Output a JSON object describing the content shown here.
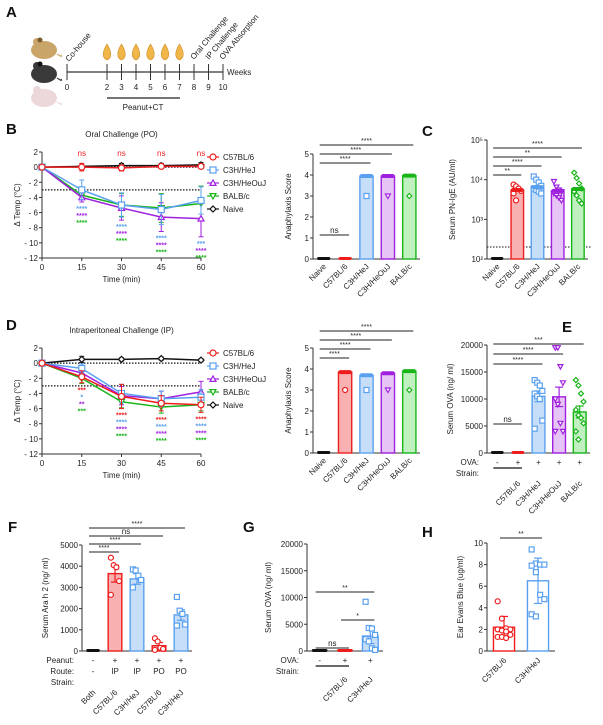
{
  "colors": {
    "C57BL/6": "#ee1c1c",
    "C3H/HeJ": "#5aa0f0",
    "C3H/HeOuJ": "#a020e0",
    "BALB/c": "#18b418",
    "Naive": "#111111"
  },
  "fills": {
    "C57BL/6": "#f8b0b0",
    "C3H/HeJ": "#c6def8",
    "C3H/HeOuJ": "#e6c4f6",
    "BALB/c": "#c0f0c0",
    "Naive": "#111111"
  },
  "panelA": {
    "letter": "A",
    "event_labels": [
      "Co-house",
      "Oral Challenge",
      "IP Challenge",
      "OVA Absorption"
    ],
    "week_ticks": [
      "0",
      "2",
      "3",
      "4",
      "5",
      "6",
      "7",
      "8",
      "9",
      "10"
    ],
    "axis_label": "Weeks",
    "bracket_label": "Peanut+CT"
  },
  "chart_data": [
    {
      "id": "B",
      "letter": "B",
      "type": "line",
      "title": "Oral Challenge (PO)",
      "xlabel": "Time  (min)",
      "ylabel": "Δ Temp (°C)",
      "x": [
        0,
        15,
        30,
        45,
        60
      ],
      "xticks": [
        "0",
        "15",
        "30",
        "45",
        "60"
      ],
      "ylim": [
        -12,
        2
      ],
      "yticks": [
        "2",
        "0",
        "- 2",
        "- 4",
        "- 6",
        "- 8",
        "- 10",
        "- 12"
      ],
      "reference_lines": [
        0,
        -3
      ],
      "series": [
        {
          "name": "C57BL/6",
          "marker": "circle",
          "values": [
            0,
            0,
            -0.1,
            0.1,
            0.1
          ],
          "err": [
            0,
            0.5,
            0.4,
            0.3,
            0.3
          ]
        },
        {
          "name": "C3H/HeJ",
          "marker": "square",
          "values": [
            0,
            -3.0,
            -5.0,
            -5.6,
            -4.4
          ],
          "err": [
            0,
            1.3,
            1.6,
            2.0,
            1.8
          ]
        },
        {
          "name": "C3H/HeOuJ",
          "marker": "triangle-up",
          "values": [
            0,
            -4.0,
            -5.4,
            -6.6,
            -6.8
          ],
          "err": [
            0,
            0.6,
            1.6,
            1.9,
            2.4
          ]
        },
        {
          "name": "BALB/c",
          "marker": "triangle-down",
          "values": [
            0,
            -3.7,
            -5.0,
            -5.4,
            -4.8
          ],
          "err": [
            0,
            0.5,
            1.5,
            1.9,
            2.3
          ]
        },
        {
          "name": "Naive",
          "marker": "diamond",
          "values": [
            0,
            0.1,
            0.2,
            0.2,
            0.3
          ],
          "err": [
            0,
            0.2,
            0.3,
            0.3,
            0.3
          ]
        }
      ],
      "top_annotations": {
        "text": [
          "ns",
          "ns",
          "ns",
          "ns"
        ],
        "color": "#ee1c1c"
      },
      "annotations": [
        {
          "x": 15,
          "lines": [
            {
              "t": "****",
              "s": "C3H/HeJ"
            },
            {
              "t": "****",
              "s": "C3H/HeOuJ"
            },
            {
              "t": "****",
              "s": "BALB/c"
            }
          ]
        },
        {
          "x": 30,
          "lines": [
            {
              "t": "****",
              "s": "C3H/HeJ"
            },
            {
              "t": "****",
              "s": "C3H/HeOuJ"
            },
            {
              "t": "****",
              "s": "BALB/c"
            }
          ]
        },
        {
          "x": 45,
          "lines": [
            {
              "t": "****",
              "s": "C3H/HeJ"
            },
            {
              "t": "****",
              "s": "C3H/HeOuJ"
            },
            {
              "t": "****",
              "s": "BALB/c"
            }
          ]
        },
        {
          "x": 60,
          "lines": [
            {
              "t": "***",
              "s": "C3H/HeJ"
            },
            {
              "t": "****",
              "s": "C3H/HeOuJ"
            },
            {
              "t": "****",
              "s": "BALB/c"
            }
          ]
        }
      ],
      "legend": "right"
    },
    {
      "id": "B2",
      "type": "bar",
      "ylabel": "Anaphylaxis  Score",
      "categories": [
        "Naive",
        "C57BL/6",
        "C3H/HeJ",
        "C3H/HeOuJ",
        "BALB/c"
      ],
      "values": [
        0,
        0,
        3.95,
        3.95,
        3.97
      ],
      "ylim": [
        0,
        5
      ],
      "yticks": [
        "0",
        "1",
        "2",
        "3",
        "4",
        "5"
      ],
      "outliers": [
        null,
        null,
        3,
        3,
        3
      ],
      "sig": [
        {
          "from": 0,
          "to": 1,
          "text": "ns"
        },
        {
          "from": 0,
          "to": 2,
          "text": "****"
        },
        {
          "from": 0,
          "to": 3,
          "text": "****"
        },
        {
          "from": 0,
          "to": 4,
          "text": "****"
        }
      ]
    },
    {
      "id": "C",
      "letter": "C",
      "type": "bar",
      "scale": "log",
      "ylabel": "Serum PN-IgE (AU/ml)",
      "categories": [
        "Naive",
        "C57BL/6",
        "C3H/HeJ",
        "C3H/HeOuJ",
        "BALB/c"
      ],
      "values": [
        200,
        5500,
        6500,
        5200,
        5800
      ],
      "ylim": [
        100,
        100000
      ],
      "yticks": [
        "10²",
        "10³",
        "10⁴",
        "10⁵"
      ],
      "detection_limit": 200,
      "points": [
        [
          200,
          200,
          200,
          200,
          200,
          200
        ],
        [
          7500,
          6800,
          6000,
          5200,
          4500,
          3000
        ],
        [
          12000,
          10000,
          8500,
          7000,
          6000,
          5500,
          5000,
          4500
        ],
        [
          9000,
          6500,
          5500,
          5000,
          4500,
          4000,
          3500,
          3000
        ],
        [
          15000,
          11000,
          8000,
          6000,
          5000,
          4000,
          3000,
          2500
        ]
      ],
      "sig": [
        {
          "from": 0,
          "to": 1,
          "text": "**"
        },
        {
          "from": 0,
          "to": 2,
          "text": "****"
        },
        {
          "from": 0,
          "to": 3,
          "text": "**"
        },
        {
          "from": 0,
          "to": 4,
          "text": "****"
        }
      ]
    },
    {
      "id": "D",
      "letter": "D",
      "type": "line",
      "title": "Intraperitoneal Challenge (IP)",
      "xlabel": "Time  (min)",
      "ylabel": "Δ Temp (°C)",
      "x": [
        0,
        15,
        30,
        45,
        60
      ],
      "xticks": [
        "0",
        "15",
        "30",
        "45",
        "60"
      ],
      "ylim": [
        -12,
        2
      ],
      "yticks": [
        "2",
        "0",
        "- 2",
        "- 4",
        "- 6",
        "- 8",
        "- 10",
        "- 12"
      ],
      "reference_lines": [
        0,
        -3
      ],
      "series": [
        {
          "name": "C57BL/6",
          "marker": "circle",
          "values": [
            0,
            -1.8,
            -4.4,
            -5.3,
            -5.5
          ],
          "err": [
            0,
            0.8,
            1.6,
            1.0,
            1.0
          ]
        },
        {
          "name": "C3H/HeJ",
          "marker": "square",
          "values": [
            0,
            -0.7,
            -4.0,
            -4.7,
            -4.5
          ],
          "err": [
            0,
            0.6,
            1.2,
            1.0,
            1.0
          ]
        },
        {
          "name": "C3H/HeOuJ",
          "marker": "triangle-up",
          "values": [
            0,
            -1.3,
            -4.3,
            -4.7,
            -3.8
          ],
          "err": [
            0,
            0.6,
            1.2,
            1.0,
            1.4
          ]
        },
        {
          "name": "BALB/c",
          "marker": "triangle-down",
          "values": [
            0,
            -2.0,
            -5.1,
            -5.8,
            -5.5
          ],
          "err": [
            0,
            0.7,
            0.8,
            0.8,
            0.8
          ]
        },
        {
          "name": "Naive",
          "marker": "diamond",
          "values": [
            0,
            0.5,
            0.5,
            0.6,
            0.4
          ],
          "err": [
            0,
            0.4,
            0.2,
            0.2,
            0.2
          ]
        }
      ],
      "annotations": [
        {
          "x": 15,
          "lines": [
            {
              "t": "***",
              "s": "C57BL/6"
            },
            {
              "t": "*",
              "s": "C3H/HeJ"
            },
            {
              "t": "**",
              "s": "C3H/HeOuJ"
            },
            {
              "t": "***",
              "s": "BALB/c"
            }
          ]
        },
        {
          "x": 30,
          "lines": [
            {
              "t": "****",
              "s": "C57BL/6"
            },
            {
              "t": "****",
              "s": "C3H/HeJ"
            },
            {
              "t": "****",
              "s": "C3H/HeOuJ"
            },
            {
              "t": "****",
              "s": "BALB/c"
            }
          ]
        },
        {
          "x": 45,
          "lines": [
            {
              "t": "****",
              "s": "C57BL/6"
            },
            {
              "t": "****",
              "s": "C3H/HeJ"
            },
            {
              "t": "****",
              "s": "C3H/HeOuJ"
            },
            {
              "t": "****",
              "s": "BALB/c"
            }
          ]
        },
        {
          "x": 60,
          "lines": [
            {
              "t": "****",
              "s": "C57BL/6"
            },
            {
              "t": "****",
              "s": "C3H/HeJ"
            },
            {
              "t": "****",
              "s": "C3H/HeOuJ"
            },
            {
              "t": "****",
              "s": "BALB/c"
            }
          ]
        }
      ],
      "legend": "right"
    },
    {
      "id": "D2",
      "type": "bar",
      "ylabel": "Anaphylaxis  Score",
      "categories": [
        "Naive",
        "C57BL/6",
        "C3H/HeJ",
        "C3H/HeOuJ",
        "BALB/c"
      ],
      "values": [
        0,
        3.85,
        3.7,
        3.8,
        3.9
      ],
      "ylim": [
        0,
        5
      ],
      "yticks": [
        "0",
        "1",
        "2",
        "3",
        "4",
        "5"
      ],
      "outliers": [
        null,
        3,
        3,
        3,
        3
      ],
      "sig": [
        {
          "from": 0,
          "to": 1,
          "text": "****"
        },
        {
          "from": 0,
          "to": 2,
          "text": "****"
        },
        {
          "from": 0,
          "to": 3,
          "text": "****"
        },
        {
          "from": 0,
          "to": 4,
          "text": "****"
        }
      ]
    },
    {
      "id": "E",
      "letter": "E",
      "type": "bar",
      "ylabel": "Serum OVA  (ng/ ml)",
      "categories": [
        "",
        "C57BL/6",
        "C3H/HeJ",
        "C3H/HeOuJ",
        "BALB/c"
      ],
      "bar_colors": [
        "Naive",
        "C57BL/6",
        "C3H/HeJ",
        "C3H/HeOuJ",
        "BALB/c"
      ],
      "values": [
        0,
        0,
        10500,
        10400,
        7600
      ],
      "err": [
        0,
        0,
        1000,
        1800,
        1100
      ],
      "ylim": [
        0,
        20000
      ],
      "yticks": [
        "0",
        "5000",
        "10000",
        "15000",
        "20000"
      ],
      "points": [
        [
          0,
          0,
          0,
          0,
          0,
          0
        ],
        [
          0,
          0,
          0,
          0,
          0,
          0
        ],
        [
          13500,
          13000,
          12500,
          11500,
          11000,
          10500,
          10000,
          6000,
          4500
        ],
        [
          19500,
          19500,
          16000,
          13000,
          10000,
          9000,
          5500,
          4000,
          4000
        ],
        [
          13500,
          12500,
          11000,
          9500,
          8000,
          7000,
          6500,
          5500,
          4000,
          2500
        ]
      ],
      "rows": [
        {
          "label": "OVA:",
          "values": [
            "-",
            "+",
            "+",
            "+",
            "+"
          ]
        }
      ],
      "strain_label": "Strain:",
      "sig": [
        {
          "from": 0,
          "to": 1,
          "text": "ns"
        },
        {
          "from": 0,
          "to": 2,
          "text": "****"
        },
        {
          "from": 0,
          "to": 3,
          "text": "****"
        },
        {
          "from": 0,
          "to": 4,
          "text": "***"
        }
      ]
    },
    {
      "id": "F",
      "letter": "F",
      "type": "bar",
      "ylabel": "Serum Ara h 2 (ng/ ml)",
      "categories": [
        "Both",
        "C57BL/6",
        "C3H/HeJ",
        "C57BL/6",
        "C3H/HeJ"
      ],
      "bar_colors": [
        "Naive",
        "C57BL/6",
        "C3H/HeJ",
        "C57BL/6",
        "C3H/HeJ"
      ],
      "values": [
        0,
        3650,
        3400,
        250,
        1700
      ],
      "err": [
        0,
        400,
        250,
        150,
        250
      ],
      "ylim": [
        0,
        5000
      ],
      "yticks": [
        "0",
        "1000",
        "2000",
        "3000",
        "4000",
        "5000"
      ],
      "points": [
        [
          0,
          0,
          0,
          0,
          0
        ],
        [
          4400,
          4050,
          3950,
          3300,
          2650
        ],
        [
          3850,
          3800,
          3550,
          3350,
          3000
        ],
        [
          600,
          450,
          150,
          100,
          50
        ],
        [
          2550,
          1900,
          1750,
          1250,
          1200
        ]
      ],
      "rows": [
        {
          "label": "Peanut:",
          "values": [
            "-",
            "+",
            "+",
            "+",
            "+"
          ]
        },
        {
          "label": "Route:",
          "values": [
            "-",
            "IP",
            "IP",
            "PO",
            "PO"
          ]
        }
      ],
      "strain_label": "Strain:",
      "sig": [
        {
          "from": 0,
          "to": 1,
          "text": "****"
        },
        {
          "from": 0,
          "to": 2,
          "text": "****"
        },
        {
          "from": 0,
          "to": 3,
          "text": "ns"
        },
        {
          "from": 0,
          "to": 4,
          "text": "****"
        }
      ]
    },
    {
      "id": "G",
      "letter": "G",
      "type": "bar",
      "ylabel": "Serum OVA  (ng/ ml)",
      "categories": [
        "",
        "C57BL/6",
        "C3H/HeJ"
      ],
      "bar_colors": [
        "Naive",
        "C57BL/6",
        "C3H/HeJ"
      ],
      "values": [
        0,
        0,
        2800
      ],
      "err": [
        0,
        0,
        1400
      ],
      "ylim": [
        0,
        20000
      ],
      "yticks": [
        "0",
        "5000",
        "10000",
        "15000",
        "20000"
      ],
      "points": [
        [
          0,
          0,
          0,
          0,
          0
        ],
        [
          0,
          0,
          0,
          0,
          0
        ],
        [
          9200,
          4300,
          4200,
          3000,
          2200,
          1800,
          500,
          200
        ]
      ],
      "rows": [
        {
          "label": "OVA:",
          "values": [
            "-",
            "+",
            "+"
          ]
        }
      ],
      "strain_label": "Strain:",
      "sig": [
        {
          "from": 0,
          "to": 1,
          "text": "ns"
        },
        {
          "from": 1,
          "to": 2,
          "text": "*"
        },
        {
          "from": 0,
          "to": 2,
          "text": "**"
        }
      ]
    },
    {
      "id": "H",
      "letter": "H",
      "type": "bar",
      "ylabel": "Ear Evans Blue (ug/ml)",
      "categories": [
        "C57BL/6",
        "C3H/HeJ"
      ],
      "bar_colors": [
        "C57BL/6",
        "C3H/HeJ"
      ],
      "hollow": true,
      "values": [
        2.2,
        6.5
      ],
      "err": [
        1.0,
        2.1
      ],
      "ylim": [
        0,
        10
      ],
      "yticks": [
        "0",
        "2",
        "4",
        "6",
        "8",
        "10"
      ],
      "points": [
        [
          4.6,
          3.0,
          2.1,
          2.0,
          2.0,
          1.9,
          1.8,
          1.5,
          1.3,
          1.3,
          1.2
        ],
        [
          9.4,
          8.1,
          8.0,
          8.0,
          7.9,
          7.3,
          5.2,
          4.8,
          3.4,
          3.2
        ]
      ],
      "sig": [
        {
          "from": 0,
          "to": 1,
          "text": "**"
        }
      ]
    }
  ]
}
